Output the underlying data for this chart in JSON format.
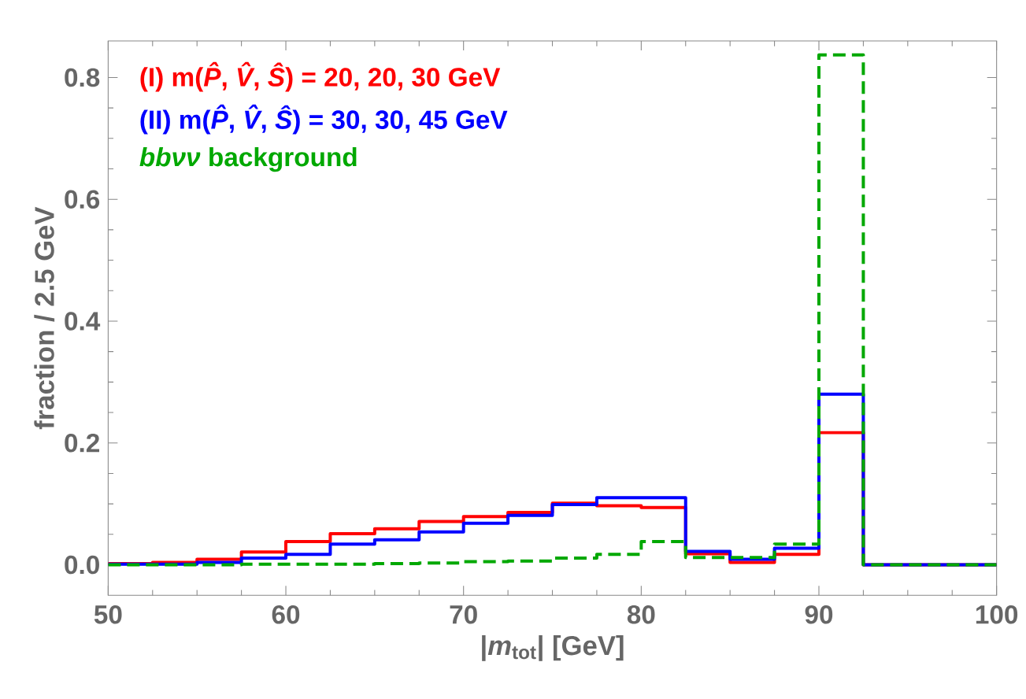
{
  "chart_data": {
    "type": "histogram",
    "xlabel": "|*m*$_{tot}$|  [GeV]",
    "ylabel": "fraction / 2.5 GeV",
    "bins": [
      50,
      52.5,
      55,
      57.5,
      60,
      62.5,
      65,
      67.5,
      70,
      72.5,
      75,
      77.5,
      80,
      82.5,
      85,
      87.5,
      90,
      92.5,
      95,
      97.5,
      100
    ],
    "series": [
      {
        "name": "(I)  m(*P̂*, *V̂*, *Ŝ*) = 20, 20, 30 GeV",
        "color": "#ff0000",
        "line_style": "solid",
        "values": [
          0.002,
          0.004,
          0.009,
          0.021,
          0.038,
          0.051,
          0.059,
          0.071,
          0.079,
          0.086,
          0.101,
          0.097,
          0.094,
          0.018,
          0.004,
          0.017,
          0.217,
          0,
          0,
          0
        ]
      },
      {
        "name": "(II) m(*P̂*, *V̂*, *Ŝ*) = 30, 30, 45 GeV",
        "color": "#0000ff",
        "line_style": "solid",
        "values": [
          0.001,
          0.001,
          0.004,
          0.011,
          0.017,
          0.034,
          0.041,
          0.054,
          0.068,
          0.081,
          0.099,
          0.11,
          0.11,
          0.022,
          0.009,
          0.027,
          0.28,
          0,
          0,
          0
        ]
      },
      {
        "name": "*bbνν* background",
        "color": "#00a800",
        "line_style": "dashed",
        "values": [
          0,
          0,
          0,
          0.001,
          0.001,
          0.001,
          0.002,
          0.003,
          0.005,
          0.006,
          0.011,
          0.017,
          0.038,
          0.012,
          0.012,
          0.034,
          0.837,
          0,
          0,
          0
        ]
      }
    ],
    "xlim": [
      50,
      100
    ],
    "ylim": [
      -0.05,
      0.86
    ],
    "xticks": [
      50,
      60,
      70,
      80,
      90,
      100
    ],
    "yticks": [
      {
        "value": 0,
        "label": "0.0"
      },
      {
        "value": 0.2,
        "label": "0.2"
      },
      {
        "value": 0.4,
        "label": "0.4"
      },
      {
        "value": 0.6,
        "label": "0.6"
      },
      {
        "value": 0.8,
        "label": "0.8"
      }
    ],
    "legend": "top left"
  }
}
